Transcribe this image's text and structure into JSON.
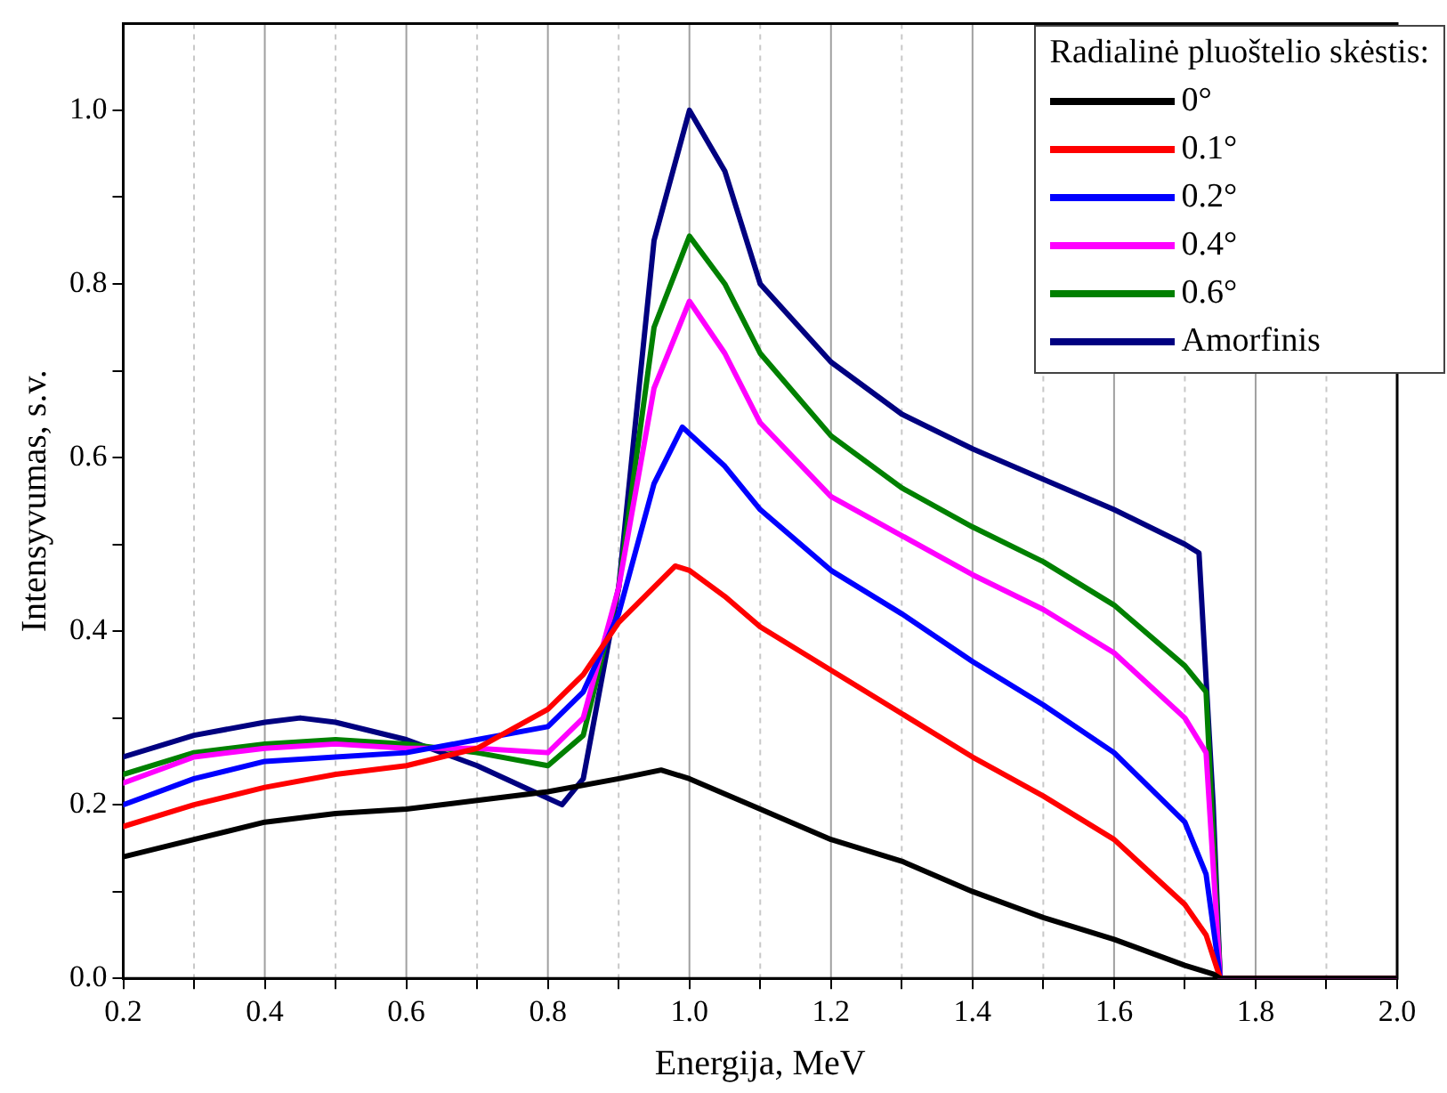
{
  "chart_data": {
    "type": "line",
    "xlabel": "Energija, MeV",
    "ylabel": "Intensyvumas, s.v.",
    "legend_title": "Radialinė pluoštelio skėstis:",
    "legend": "top right",
    "grid": "x",
    "marker": "none",
    "line_style": "solid",
    "xlim": [
      0.2,
      2.0
    ],
    "ylim": [
      0,
      1.1
    ],
    "xticks": [
      0.2,
      {
        "value": 0.3,
        "label": null
      },
      0.4,
      {
        "value": 0.5,
        "label": null
      },
      0.6,
      {
        "value": 0.7,
        "label": null
      },
      0.8,
      {
        "value": 0.9,
        "label": null
      },
      {
        "value": 1.0,
        "label": "1.0"
      },
      {
        "value": 1.1,
        "label": null
      },
      1.2,
      {
        "value": 1.3,
        "label": null
      },
      1.4,
      {
        "value": 1.5,
        "label": null
      },
      1.6,
      {
        "value": 1.7,
        "label": null
      },
      1.8,
      {
        "value": 1.9,
        "label": null
      },
      {
        "value": 2.0,
        "label": "2.0"
      }
    ],
    "yticks": [
      {
        "value": 0,
        "label": "0.0"
      },
      {
        "value": 0.1,
        "label": null
      },
      {
        "value": 0.2,
        "label": "0.2"
      },
      {
        "value": 0.3,
        "label": null
      },
      {
        "value": 0.4,
        "label": "0.4"
      },
      {
        "value": 0.5,
        "label": null
      },
      {
        "value": 0.6,
        "label": "0.6"
      },
      {
        "value": 0.7,
        "label": null
      },
      {
        "value": 0.8,
        "label": "0.8"
      },
      {
        "value": 0.9,
        "label": null
      },
      {
        "value": 1.0,
        "label": "1.0"
      }
    ],
    "series": [
      {
        "name": "0°",
        "color": "#000000",
        "x": [
          0.2,
          0.3,
          0.4,
          0.5,
          0.6,
          0.7,
          0.8,
          0.9,
          0.96,
          1.0,
          1.1,
          1.2,
          1.3,
          1.4,
          1.5,
          1.6,
          1.7,
          1.74,
          1.75,
          2.0
        ],
        "values": [
          0.14,
          0.16,
          0.18,
          0.19,
          0.195,
          0.205,
          0.215,
          0.23,
          0.24,
          0.23,
          0.195,
          0.16,
          0.135,
          0.1,
          0.07,
          0.045,
          0.015,
          0.005,
          0,
          0
        ]
      },
      {
        "name": "0.1°",
        "color": "#ff0000",
        "x": [
          0.2,
          0.3,
          0.4,
          0.5,
          0.6,
          0.7,
          0.8,
          0.85,
          0.9,
          0.98,
          1.0,
          1.05,
          1.1,
          1.2,
          1.3,
          1.4,
          1.5,
          1.6,
          1.7,
          1.73,
          1.75,
          2.0
        ],
        "values": [
          0.175,
          0.2,
          0.22,
          0.235,
          0.245,
          0.265,
          0.31,
          0.35,
          0.41,
          0.475,
          0.47,
          0.44,
          0.405,
          0.355,
          0.305,
          0.255,
          0.21,
          0.16,
          0.085,
          0.05,
          0,
          0
        ]
      },
      {
        "name": "0.2°",
        "color": "#0000ff",
        "x": [
          0.2,
          0.3,
          0.4,
          0.5,
          0.6,
          0.7,
          0.8,
          0.85,
          0.9,
          0.95,
          0.99,
          1.05,
          1.1,
          1.2,
          1.3,
          1.4,
          1.5,
          1.6,
          1.7,
          1.73,
          1.75,
          2.0
        ],
        "values": [
          0.2,
          0.23,
          0.25,
          0.255,
          0.26,
          0.275,
          0.29,
          0.33,
          0.42,
          0.57,
          0.635,
          0.59,
          0.54,
          0.47,
          0.42,
          0.365,
          0.315,
          0.26,
          0.18,
          0.12,
          0,
          0
        ]
      },
      {
        "name": "0.4°",
        "color": "#ff00ff",
        "x": [
          0.2,
          0.3,
          0.4,
          0.5,
          0.6,
          0.7,
          0.8,
          0.85,
          0.9,
          0.95,
          1.0,
          1.05,
          1.1,
          1.2,
          1.3,
          1.4,
          1.5,
          1.6,
          1.7,
          1.73,
          1.75,
          2.0
        ],
        "values": [
          0.225,
          0.255,
          0.265,
          0.27,
          0.265,
          0.265,
          0.26,
          0.3,
          0.45,
          0.68,
          0.78,
          0.72,
          0.64,
          0.555,
          0.51,
          0.465,
          0.425,
          0.375,
          0.3,
          0.26,
          0,
          0
        ]
      },
      {
        "name": "0.6°",
        "color": "#008000",
        "x": [
          0.2,
          0.3,
          0.4,
          0.5,
          0.6,
          0.7,
          0.8,
          0.85,
          0.9,
          0.95,
          1.0,
          1.05,
          1.1,
          1.2,
          1.3,
          1.4,
          1.5,
          1.6,
          1.7,
          1.73,
          1.75,
          2.0
        ],
        "values": [
          0.235,
          0.26,
          0.27,
          0.275,
          0.27,
          0.26,
          0.245,
          0.28,
          0.45,
          0.75,
          0.855,
          0.8,
          0.72,
          0.625,
          0.565,
          0.52,
          0.48,
          0.43,
          0.36,
          0.33,
          0,
          0
        ]
      },
      {
        "name": "Amorfinis",
        "color": "#000080",
        "x": [
          0.2,
          0.3,
          0.4,
          0.45,
          0.5,
          0.6,
          0.7,
          0.78,
          0.82,
          0.85,
          0.9,
          0.95,
          1.0,
          1.05,
          1.1,
          1.2,
          1.3,
          1.4,
          1.5,
          1.6,
          1.7,
          1.72,
          1.74,
          1.75,
          2.0
        ],
        "values": [
          0.255,
          0.28,
          0.295,
          0.3,
          0.295,
          0.275,
          0.245,
          0.215,
          0.2,
          0.23,
          0.45,
          0.85,
          1.0,
          0.93,
          0.8,
          0.71,
          0.65,
          0.61,
          0.575,
          0.54,
          0.5,
          0.49,
          0.2,
          0,
          0
        ]
      }
    ]
  }
}
